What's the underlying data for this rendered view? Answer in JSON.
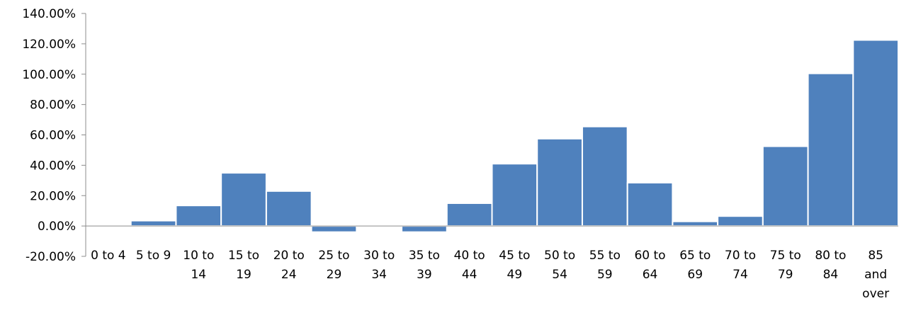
{
  "chart_data": {
    "type": "bar",
    "title": "",
    "xlabel": "",
    "ylabel": "",
    "categories": [
      [
        "0 to 4"
      ],
      [
        "5 to 9"
      ],
      [
        "10 to",
        "14"
      ],
      [
        "15 to",
        "19"
      ],
      [
        "20 to",
        "24"
      ],
      [
        "25 to",
        "29"
      ],
      [
        "30 to",
        "34"
      ],
      [
        "35 to",
        "39"
      ],
      [
        "40 to",
        "44"
      ],
      [
        "45 to",
        "49"
      ],
      [
        "50 to",
        "54"
      ],
      [
        "55 to",
        "59"
      ],
      [
        "60 to",
        "64"
      ],
      [
        "65 to",
        "69"
      ],
      [
        "70 to",
        "74"
      ],
      [
        "75 to",
        "79"
      ],
      [
        "80 to",
        "84"
      ],
      [
        "85",
        "and",
        "over"
      ]
    ],
    "values": [
      -0.5,
      3.5,
      13.5,
      35,
      23,
      -4,
      0,
      -4,
      15,
      41,
      57.5,
      65.5,
      28.5,
      3,
      6.5,
      52.5,
      100.5,
      122.5
    ],
    "ylim": [
      -20,
      140
    ],
    "yticks": [
      -20,
      0,
      20,
      40,
      60,
      80,
      100,
      120,
      140
    ],
    "ytick_labels": [
      "-20.00%",
      "0.00%",
      "20.00%",
      "40.00%",
      "60.00%",
      "80.00%",
      "100.00%",
      "120.00%",
      "140.00%"
    ],
    "bar_color": "#4f81bd",
    "bar_edge_color": "#ffffff",
    "axis_color": "#8c8c8c",
    "grid": false,
    "legend": "none"
  }
}
